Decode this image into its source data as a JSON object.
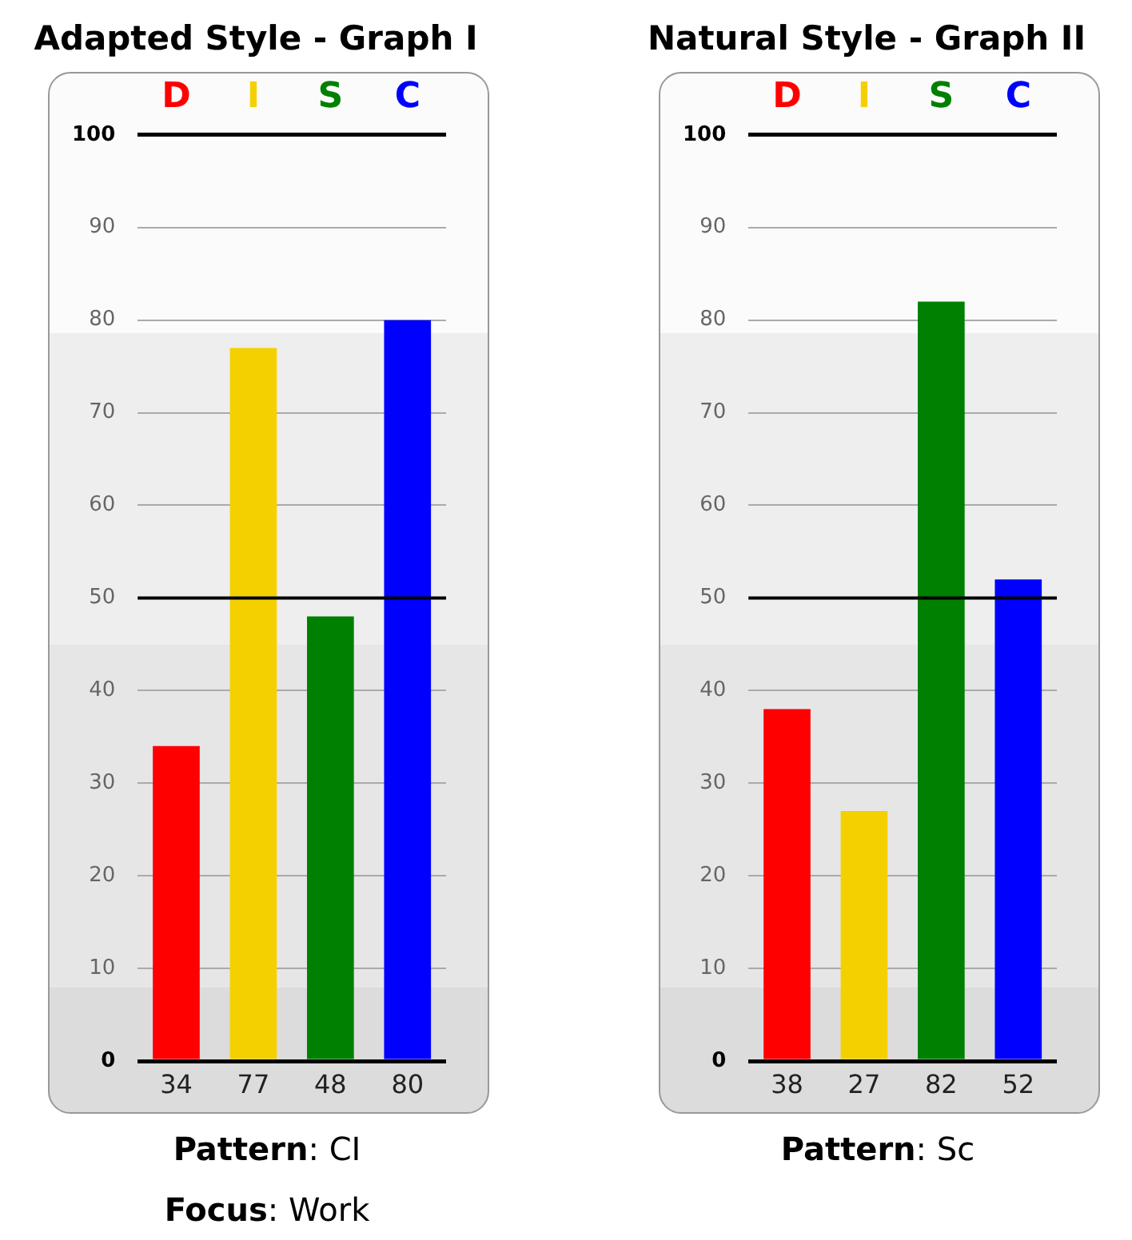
{
  "chart_data": [
    {
      "type": "bar",
      "title": "Adapted Style - Graph I",
      "categories": [
        "D",
        "I",
        "S",
        "C"
      ],
      "values": [
        34,
        77,
        48,
        80
      ],
      "colors": [
        "#ff0000",
        "#f5d000",
        "#008000",
        "#0000ff"
      ],
      "ylim": [
        0,
        100
      ],
      "yticks": [
        0,
        10,
        20,
        30,
        40,
        50,
        60,
        70,
        80,
        90,
        100
      ],
      "grid": "y",
      "data_labels": true,
      "legend": false,
      "ref_lines": [
        {
          "axis": "y",
          "value": 50,
          "color": "#000000"
        }
      ],
      "annotations": [
        "Pattern: CI",
        "Focus: Work"
      ]
    },
    {
      "type": "bar",
      "title": "Natural Style - Graph II",
      "categories": [
        "D",
        "I",
        "S",
        "C"
      ],
      "values": [
        38,
        27,
        82,
        52
      ],
      "colors": [
        "#ff0000",
        "#f5d000",
        "#008000",
        "#0000ff"
      ],
      "ylim": [
        0,
        100
      ],
      "yticks": [
        0,
        10,
        20,
        30,
        40,
        50,
        60,
        70,
        80,
        90,
        100
      ],
      "grid": "y",
      "data_labels": true,
      "legend": false,
      "ref_lines": [
        {
          "axis": "y",
          "value": 50,
          "color": "#000000"
        }
      ],
      "annotations": [
        "Pattern: Sc"
      ]
    }
  ]
}
